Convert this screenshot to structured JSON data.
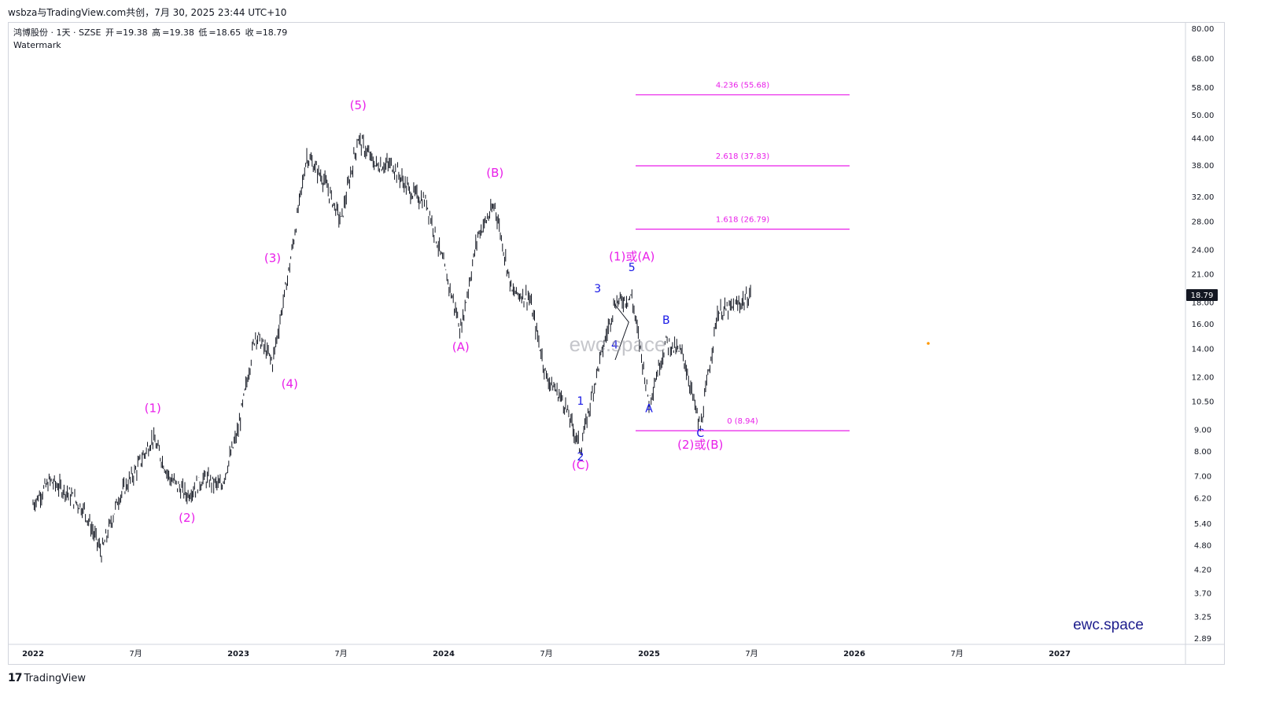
{
  "header": {
    "text": "wsbza与TradingView.com共创，7月 30, 2025 23:44 UTC+10"
  },
  "legend": {
    "symbol": "鸿博股份 · 1天 · SZSE",
    "open_label": "开",
    "open": "=19.38",
    "high_label": "高",
    "high": "=19.38",
    "low_label": "低",
    "low": "=18.65",
    "close_label": "收",
    "close": "=18.79",
    "watermark_label": "Watermark"
  },
  "watermark": {
    "center": "ewc.space",
    "corner": "ewc.space"
  },
  "footer": {
    "logo_mark": "17",
    "logo_text": "TradingView"
  },
  "colors": {
    "magenta": "#e91ee9",
    "blue": "#1515e6",
    "candle": "#131722",
    "price_tag": "#131722",
    "dot": "#ff9800"
  },
  "chart_data": {
    "type": "line",
    "title": "",
    "y_scale": "log",
    "ylim": [
      2.8,
      82
    ],
    "x_ticks": [
      "2022",
      "7月",
      "2023",
      "7月",
      "2024",
      "7月",
      "2025",
      "7月",
      "2026",
      "7月",
      "2027"
    ],
    "y_ticks": [
      "80.00",
      "68.00",
      "58.00",
      "50.00",
      "44.00",
      "38.00",
      "32.00",
      "28.00",
      "24.00",
      "21.00",
      "18.00",
      "16.00",
      "14.00",
      "12.00",
      "10.50",
      "9.00",
      "8.00",
      "7.00",
      "6.20",
      "5.40",
      "4.80",
      "4.20",
      "3.70",
      "3.25",
      "2.89"
    ],
    "last_price": "18.79",
    "series": [
      {
        "x": [
          "2022-01",
          "2022-02",
          "2022-03",
          "2022-04",
          "2022-05",
          "2022-06",
          "2022-07",
          "2022-08",
          "2022-09",
          "2022-10",
          "2022-11",
          "2022-12",
          "2023-01",
          "2023-02",
          "2023-03",
          "2023-04",
          "2023-05",
          "2023-06",
          "2023-07",
          "2023-08",
          "2023-09",
          "2023-10",
          "2023-11",
          "2023-12",
          "2024-01",
          "2024-02",
          "2024-03",
          "2024-04",
          "2024-05",
          "2024-06",
          "2024-07",
          "2024-08",
          "2024-09",
          "2024-10",
          "2024-11",
          "2024-12",
          "2025-01",
          "2025-02",
          "2025-03",
          "2025-04",
          "2025-05",
          "2025-06",
          "2025-07"
        ],
        "values": [
          6.0,
          6.8,
          6.4,
          5.8,
          4.6,
          6.2,
          7.2,
          8.6,
          6.9,
          6.3,
          6.9,
          6.6,
          9.0,
          15.2,
          13.0,
          22.0,
          40.0,
          35.0,
          28.0,
          44.0,
          38.0,
          38.0,
          33.0,
          31.0,
          22.0,
          15.5,
          26.0,
          30.5,
          19.0,
          18.5,
          12.0,
          10.5,
          8.1,
          12.5,
          18.0,
          18.5,
          10.5,
          14.5,
          13.5,
          9.0,
          17.0,
          17.5,
          18.79
        ]
      }
    ],
    "fib_levels": [
      {
        "label": "4.236 (55.68)",
        "value": 55.68
      },
      {
        "label": "2.618 (37.83)",
        "value": 37.83
      },
      {
        "label": "1.618 (26.79)",
        "value": 26.79
      },
      {
        "label": "0 (8.94)",
        "value": 8.94
      }
    ],
    "wave_labels": [
      {
        "text": "(1)",
        "date": "2022-08",
        "price": 9.9,
        "color": "magenta"
      },
      {
        "text": "(2)",
        "date": "2022-10",
        "price": 5.45,
        "color": "magenta"
      },
      {
        "text": "(3)",
        "date": "2023-03",
        "price": 22.4,
        "color": "magenta"
      },
      {
        "text": "(4)",
        "date": "2023-04",
        "price": 11.3,
        "color": "magenta"
      },
      {
        "text": "(5)",
        "date": "2023-08",
        "price": 51.5,
        "color": "magenta"
      },
      {
        "text": "(A)",
        "date": "2024-02",
        "price": 13.8,
        "color": "magenta"
      },
      {
        "text": "(B)",
        "date": "2024-04",
        "price": 35.6,
        "color": "magenta"
      },
      {
        "text": "(C)",
        "date": "2024-09",
        "price": 7.25,
        "color": "magenta"
      },
      {
        "text": "(1)或(A)",
        "date": "2024-12",
        "price": 22.6,
        "color": "magenta"
      },
      {
        "text": "(2)或(B)",
        "date": "2025-04",
        "price": 8.1,
        "color": "magenta"
      },
      {
        "text": "1",
        "date": "2024-09",
        "price": 10.3,
        "color": "blue"
      },
      {
        "text": "2",
        "date": "2024-09",
        "price": 7.6,
        "color": "blue"
      },
      {
        "text": "3",
        "date": "2024-10",
        "price": 19.0,
        "color": "blue"
      },
      {
        "text": "4",
        "date": "2024-11",
        "price": 14.0,
        "color": "blue"
      },
      {
        "text": "5",
        "date": "2024-12",
        "price": 21.3,
        "color": "blue"
      },
      {
        "text": "A",
        "date": "2025-01",
        "price": 9.9,
        "color": "blue"
      },
      {
        "text": "B",
        "date": "2025-02",
        "price": 16.0,
        "color": "blue"
      },
      {
        "text": "C",
        "date": "2025-04",
        "price": 8.65,
        "color": "blue"
      }
    ]
  }
}
